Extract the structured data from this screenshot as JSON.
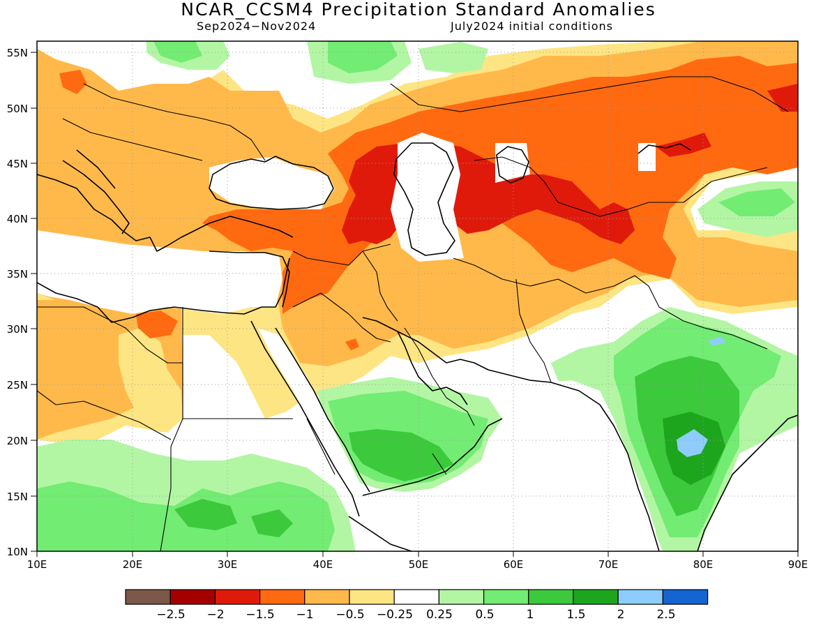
{
  "title": "NCAR_CCSM4 Precipitation Standard Anomalies",
  "subtitle_left": "Sep2024−Nov2024",
  "subtitle_right": "July2024 initial conditions",
  "lat_labels": [
    "55N",
    "50N",
    "45N",
    "40N",
    "35N",
    "30N",
    "25N",
    "20N",
    "15N",
    "10N"
  ],
  "lon_labels": [
    "10E",
    "20E",
    "30E",
    "40E",
    "50E",
    "60E",
    "70E",
    "80E",
    "90E"
  ],
  "colorbar": {
    "labels": [
      "−2.5",
      "−2",
      "−1.5",
      "−1",
      "−0.5",
      "−0.25",
      "0.25",
      "0.5",
      "1",
      "1.5",
      "2",
      "2.5"
    ],
    "colors": [
      "#7b5848",
      "#a50000",
      "#e01a0b",
      "#ff6a10",
      "#ffb94a",
      "#fee583",
      "#ffffff",
      "#b2f6a4",
      "#72ec72",
      "#3cc93c",
      "#1ea51e",
      "#8ecdfb",
      "#1464d2"
    ]
  },
  "palette": {
    "ocean": "#ffffff",
    "land_neutral": "#ffffff",
    "coast": "#000000",
    "grid": "#9a9a9a"
  }
}
